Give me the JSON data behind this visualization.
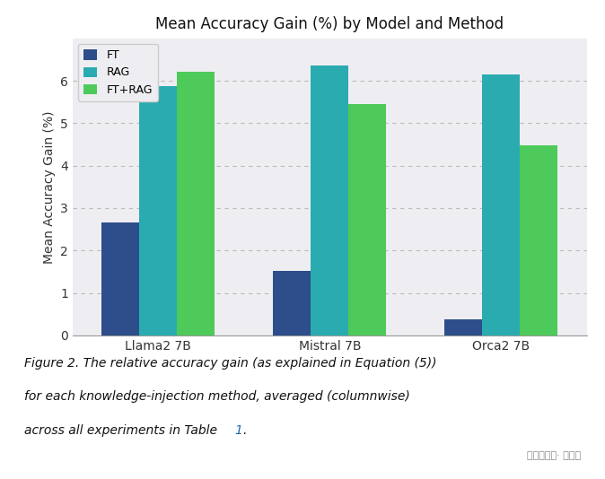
{
  "title": "Mean Accuracy Gain (%) by Model and Method",
  "ylabel": "Mean Accuracy Gain (%)",
  "categories": [
    "Llama2 7B",
    "Mistral 7B",
    "Orca2 7B"
  ],
  "methods": [
    "FT",
    "RAG",
    "FT+RAG"
  ],
  "values": {
    "FT": [
      2.65,
      1.52,
      0.38
    ],
    "RAG": [
      5.88,
      6.35,
      6.15
    ],
    "FT+RAG": [
      6.22,
      5.45,
      4.47
    ]
  },
  "colors": {
    "FT": "#2d4e8a",
    "RAG": "#2aabb0",
    "FT+RAG": "#4dca5a"
  },
  "ylim": [
    0,
    7.0
  ],
  "yticks": [
    0,
    1,
    2,
    3,
    4,
    5,
    6
  ],
  "chart_bg": "#eeeef2",
  "fig_bg": "#ffffff",
  "grid_color": "#bbbbbb",
  "bar_width": 0.22,
  "caption_line1": "Figure 2. The relative accuracy gain (as explained in Equation (5))",
  "caption_line2": "for each knowledge-injection method, averaged (columnwise)",
  "caption_line3": "across all experiments in Table 1.",
  "watermark": "微信公众号· 量子位"
}
